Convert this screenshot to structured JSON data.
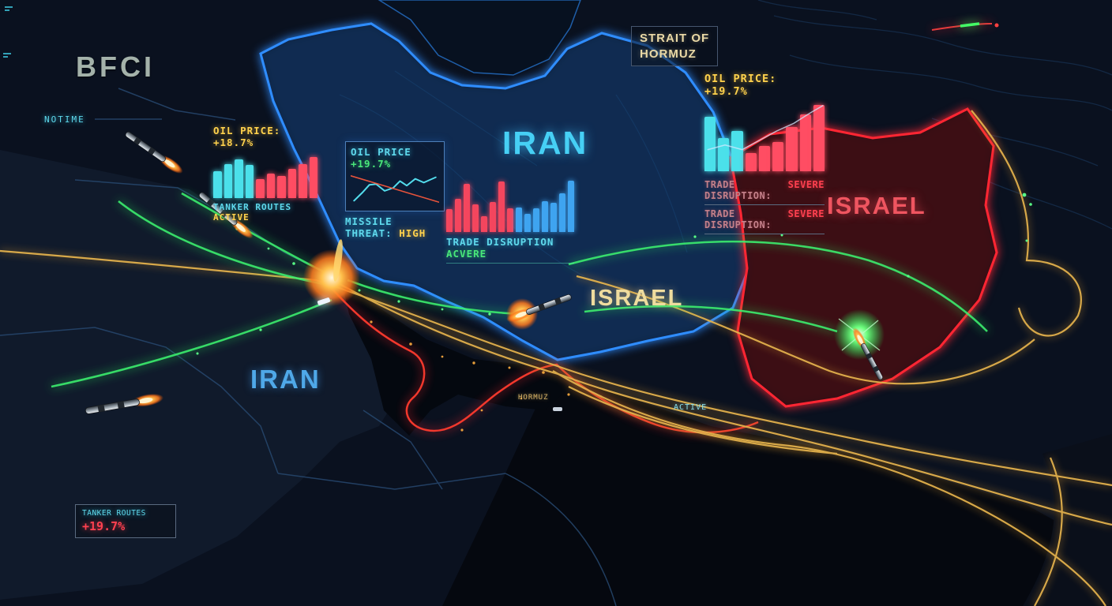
{
  "scene": {
    "labels": {
      "bfci": "BFCI",
      "notime": "NOTIME",
      "strait_line1": "STRAIT OF",
      "strait_line2": "HORMUZ",
      "iran_top": "IRAN",
      "israel_right": "ISRAEL",
      "israel_center": "ISRAEL",
      "iran_lower": "IRAN",
      "hormuz_small": "HORMUZ",
      "active_small": "ACTIVE"
    }
  },
  "panels": {
    "oil_tanker": {
      "title_label": "OIL PRICE:",
      "title_value": "+18.7%",
      "footer_label": "TANKER ROUTES",
      "footer_value": "ACTIVE",
      "bars": {
        "palette": {
          "cyan": "#4be0ea",
          "red": "#ff4d63"
        },
        "items": [
          {
            "h": 58,
            "k": "cyan"
          },
          {
            "h": 74,
            "k": "cyan"
          },
          {
            "h": 84,
            "k": "cyan"
          },
          {
            "h": 72,
            "k": "cyan"
          },
          {
            "h": 42,
            "k": "red"
          },
          {
            "h": 54,
            "k": "red"
          },
          {
            "h": 48,
            "k": "red"
          },
          {
            "h": 64,
            "k": "red"
          },
          {
            "h": 74,
            "k": "red"
          },
          {
            "h": 90,
            "k": "red"
          }
        ]
      }
    },
    "oil_missile": {
      "title_label": "OIL PRICE",
      "title_value": "+19.7%",
      "footer_label": "MISSILE THREAT:",
      "footer_value": "HIGH",
      "chart": {
        "series": [
          {
            "stroke": "#53dcec",
            "width": 2,
            "opacity": 1,
            "points": [
              [
                4,
                38
              ],
              [
                14,
                27
              ],
              [
                22,
                17
              ],
              [
                30,
                16
              ],
              [
                40,
                25
              ],
              [
                50,
                21
              ],
              [
                58,
                12
              ],
              [
                66,
                18
              ],
              [
                76,
                9
              ],
              [
                86,
                14
              ],
              [
                100,
                7
              ]
            ]
          },
          {
            "stroke": "#ff5a3c",
            "width": 1.6,
            "opacity": 0.9,
            "points": [
              [
                0,
                5
              ],
              [
                104,
                40
              ]
            ]
          }
        ]
      }
    },
    "trade_center": {
      "footer_label": "TRADE DISRUPTION",
      "footer_value": "ACVERE",
      "bars": {
        "palette": {
          "red": "#f4465e",
          "blue": "#3fa4f0"
        },
        "items": [
          {
            "h": 42,
            "k": "red"
          },
          {
            "h": 62,
            "k": "red"
          },
          {
            "h": 90,
            "k": "red"
          },
          {
            "h": 52,
            "k": "red"
          },
          {
            "h": 30,
            "k": "red"
          },
          {
            "h": 56,
            "k": "red"
          },
          {
            "h": 94,
            "k": "red"
          },
          {
            "h": 44,
            "k": "red"
          },
          {
            "h": 46,
            "k": "blue"
          },
          {
            "h": 34,
            "k": "blue"
          },
          {
            "h": 44,
            "k": "blue"
          },
          {
            "h": 58,
            "k": "blue"
          },
          {
            "h": 54,
            "k": "blue"
          },
          {
            "h": 72,
            "k": "blue"
          },
          {
            "h": 96,
            "k": "blue"
          }
        ]
      }
    },
    "trade_right": {
      "title_label": "OIL PRICE:",
      "title_value": "+19.7%",
      "rows": [
        {
          "label": "TRADE DISRUPTION:",
          "value": "SEVERE"
        },
        {
          "label": "TRADE DISRUPTION:",
          "value": "SEVERE"
        }
      ],
      "bars": {
        "palette": {
          "cyan": "#4be0ea",
          "red": "#ff4d63"
        },
        "items": [
          {
            "h": 78,
            "k": "cyan"
          },
          {
            "h": 48,
            "k": "cyan"
          },
          {
            "h": 58,
            "k": "cyan"
          },
          {
            "h": 26,
            "k": "red"
          },
          {
            "h": 36,
            "k": "red"
          },
          {
            "h": 42,
            "k": "red"
          },
          {
            "h": 64,
            "k": "red"
          },
          {
            "h": 82,
            "k": "red"
          },
          {
            "h": 96,
            "k": "red"
          }
        ]
      },
      "trend": {
        "series": [
          {
            "stroke": "#cfe9ff",
            "width": 1.5,
            "opacity": 0.75,
            "points": [
              [
                4,
                62
              ],
              [
                24,
                56
              ],
              [
                44,
                62
              ],
              [
                64,
                50
              ],
              [
                84,
                38
              ],
              [
                104,
                28
              ],
              [
                124,
                14
              ],
              [
                138,
                5
              ]
            ]
          }
        ]
      }
    },
    "tanker_box": {
      "label": "TANKER ROUTES",
      "value": "+19.7%"
    }
  },
  "colors": {
    "background": "#0a111f",
    "iran_border": "#2f8dff",
    "hostile_border": "#ff2633",
    "route_gold": "#e3b14c",
    "trail_green": "#3cf06e",
    "flare_orange": "#ff9a2e",
    "text_cyan": "#5fd9ec",
    "text_yellow": "#ffd24d",
    "text_red": "#ff4050",
    "text_green": "#49e87a"
  },
  "chart_data": [
    {
      "type": "bar",
      "title": "OIL PRICE: +18.7%",
      "caption": "TANKER ROUTES ACTIVE",
      "series": [
        {
          "name": "cyan bars",
          "color": "#4be0ea",
          "values": [
            58,
            74,
            84,
            72
          ]
        },
        {
          "name": "red bars",
          "color": "#ff4d63",
          "values": [
            42,
            54,
            48,
            64,
            74,
            90
          ]
        }
      ],
      "ylim": [
        0,
        100
      ]
    },
    {
      "type": "line",
      "title": "OIL PRICE: +19.7%",
      "caption": "MISSILE THREAT: HIGH",
      "series": [
        {
          "name": "oil price",
          "color": "#53dcec",
          "values": [
            17,
            41,
            63,
            65,
            46,
            54,
            74,
            61,
            80,
            70,
            85
          ]
        },
        {
          "name": "missile trail",
          "color": "#ff5a3c",
          "values": [
            89,
            13
          ]
        }
      ],
      "ylim": [
        0,
        100
      ]
    },
    {
      "type": "bar",
      "caption": "TRADE DISRUPTION: ACVERE",
      "series": [
        {
          "name": "red bars",
          "color": "#f4465e",
          "values": [
            42,
            62,
            90,
            52,
            30,
            56,
            94,
            44
          ]
        },
        {
          "name": "blue bars",
          "color": "#3fa4f0",
          "values": [
            46,
            34,
            44,
            58,
            54,
            72,
            96
          ]
        }
      ],
      "ylim": [
        0,
        100
      ]
    },
    {
      "type": "bar",
      "title": "OIL PRICE: +19.7%",
      "caption": "TRADE DISRUPTION: SEVERE (x2)",
      "series": [
        {
          "name": "cyan bars",
          "color": "#4be0ea",
          "values": [
            78,
            48,
            58
          ]
        },
        {
          "name": "red bars",
          "color": "#ff4d63",
          "values": [
            26,
            36,
            42,
            64,
            82,
            96
          ]
        }
      ],
      "ylim": [
        0,
        100
      ]
    }
  ]
}
